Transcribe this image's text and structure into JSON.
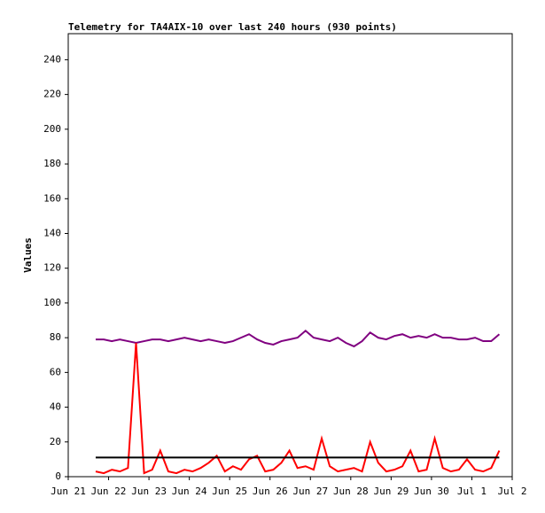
{
  "chart_data": {
    "type": "line",
    "title": "Telemetry for TA4AIX-10 over last 240 hours (930 points)",
    "y_label": "Values",
    "x": [
      0.68,
      0.88,
      1.08,
      1.28,
      1.48,
      1.68,
      1.88,
      2.08,
      2.28,
      2.48,
      2.68,
      2.88,
      3.08,
      3.28,
      3.48,
      3.68,
      3.88,
      4.08,
      4.28,
      4.48,
      4.68,
      4.88,
      5.08,
      5.28,
      5.48,
      5.68,
      5.88,
      6.08,
      6.28,
      6.48,
      6.68,
      6.88,
      7.08,
      7.28,
      7.48,
      7.68,
      7.88,
      8.08,
      8.28,
      8.48,
      8.68,
      8.88,
      9.08,
      9.28,
      9.48,
      9.68,
      9.88,
      10.08,
      10.28,
      10.48,
      10.68
    ],
    "series": [
      {
        "color": "#800080",
        "values": [
          79,
          79,
          78,
          79,
          78,
          77,
          78,
          79,
          79,
          78,
          79,
          80,
          79,
          78,
          79,
          78,
          77,
          78,
          80,
          82,
          79,
          77,
          76,
          78,
          79,
          80,
          84,
          80,
          79,
          78,
          80,
          77,
          75,
          78,
          83,
          80,
          79,
          81,
          82,
          80,
          81,
          80,
          82,
          80,
          80,
          79,
          79,
          80,
          78,
          78,
          82
        ]
      },
      {
        "color": "#ff0000",
        "values": [
          3,
          2,
          4,
          3,
          5,
          77,
          2,
          4,
          15,
          3,
          2,
          4,
          3,
          5,
          8,
          12,
          3,
          6,
          4,
          10,
          12,
          3,
          4,
          8,
          15,
          5,
          6,
          4,
          22,
          6,
          3,
          4,
          5,
          3,
          20,
          8,
          3,
          4,
          6,
          15,
          3,
          4,
          22,
          5,
          3,
          4,
          10,
          4,
          3,
          5,
          15
        ]
      },
      {
        "color": "#000000",
        "values": [
          11,
          11,
          11,
          11,
          11,
          11,
          11,
          11,
          11,
          11,
          11,
          11,
          11,
          11,
          11,
          11,
          11,
          11,
          11,
          11,
          11,
          11,
          11,
          11,
          11,
          11,
          11,
          11,
          11,
          11,
          11,
          11,
          11,
          11,
          11,
          11,
          11,
          11,
          11,
          11,
          11,
          11,
          11,
          11,
          11,
          11,
          11,
          11,
          11,
          11,
          11
        ]
      }
    ],
    "xlim": [
      0,
      11
    ],
    "xticks": [
      {
        "value": 0,
        "label": "Jun 21"
      },
      {
        "value": 1,
        "label": "Jun 22"
      },
      {
        "value": 2,
        "label": "Jun 23"
      },
      {
        "value": 3,
        "label": "Jun 24"
      },
      {
        "value": 4,
        "label": "Jun 25"
      },
      {
        "value": 5,
        "label": "Jun 26"
      },
      {
        "value": 6,
        "label": "Jun 27"
      },
      {
        "value": 7,
        "label": "Jun 28"
      },
      {
        "value": 8,
        "label": "Jun 29"
      },
      {
        "value": 9,
        "label": "Jun 30"
      },
      {
        "value": 10,
        "label": "Jul 1"
      },
      {
        "value": 11,
        "label": "Jul 2"
      }
    ],
    "ylim": [
      0,
      255
    ],
    "yticks": [
      0,
      20,
      40,
      60,
      80,
      100,
      120,
      140,
      160,
      180,
      200,
      220,
      240
    ]
  }
}
